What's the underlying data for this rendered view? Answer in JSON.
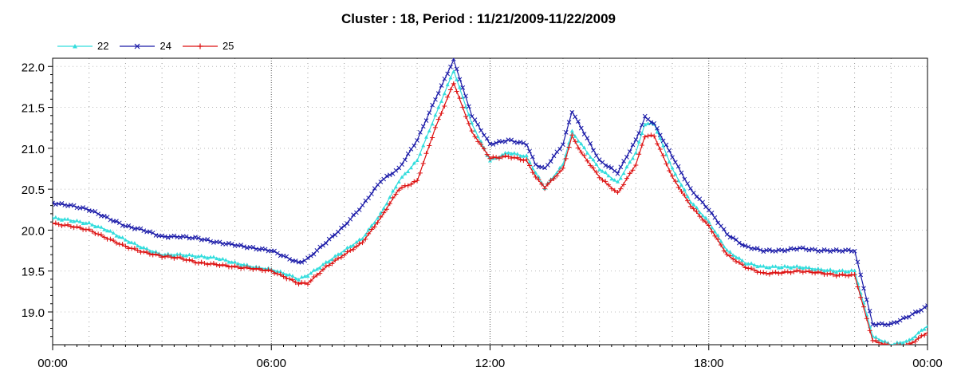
{
  "chart_data": {
    "type": "line",
    "title": "Cluster : 18, Period : 11/21/2009-11/22/2009",
    "xlabel": "",
    "ylabel": "",
    "ylim": [
      18.6,
      22.1
    ],
    "xlim_hours": [
      0,
      24
    ],
    "x_tick_labels": [
      "00:00",
      "06:00",
      "12:00",
      "18:00",
      "00:00"
    ],
    "y_tick_labels": [
      "19.0",
      "19.5",
      "20.0",
      "20.5",
      "21.0",
      "21.5",
      "22.0"
    ],
    "grid": true,
    "legend_position": "top-left",
    "x_hours": [
      0,
      0.5,
      1,
      1.5,
      2,
      2.5,
      3,
      3.5,
      4,
      4.5,
      5,
      5.5,
      6,
      6.5,
      6.75,
      7,
      7.5,
      8,
      8.5,
      9,
      9.5,
      10,
      10.5,
      11,
      11.5,
      12,
      12.5,
      13,
      13.25,
      13.5,
      14,
      14.25,
      14.5,
      15,
      15.5,
      16,
      16.25,
      16.5,
      17,
      17.5,
      18,
      18.5,
      19,
      19.5,
      20,
      20.5,
      21,
      21.5,
      22,
      22.5,
      23,
      23.5,
      24
    ],
    "series": [
      {
        "name": "22",
        "color": "#33dddd",
        "marker": "triangle",
        "values": [
          20.15,
          20.12,
          20.08,
          20.0,
          19.88,
          19.78,
          19.7,
          19.7,
          19.68,
          19.66,
          19.6,
          19.55,
          19.52,
          19.45,
          19.4,
          19.45,
          19.6,
          19.75,
          19.9,
          20.2,
          20.6,
          20.85,
          21.4,
          21.95,
          21.3,
          20.85,
          20.95,
          20.9,
          20.7,
          20.52,
          20.8,
          21.2,
          21.05,
          20.75,
          20.58,
          20.95,
          21.3,
          21.3,
          20.75,
          20.35,
          20.1,
          19.75,
          19.6,
          19.55,
          19.55,
          19.55,
          19.52,
          19.5,
          19.5,
          18.7,
          18.6,
          18.65,
          18.83
        ]
      },
      {
        "name": "24",
        "color": "#1a1aa8",
        "marker": "x",
        "values": [
          20.33,
          20.3,
          20.25,
          20.15,
          20.05,
          20.0,
          19.92,
          19.92,
          19.9,
          19.85,
          19.82,
          19.78,
          19.75,
          19.65,
          19.6,
          19.65,
          19.85,
          20.05,
          20.3,
          20.6,
          20.75,
          21.1,
          21.6,
          22.08,
          21.4,
          21.05,
          21.1,
          21.05,
          20.8,
          20.75,
          21.05,
          21.45,
          21.25,
          20.85,
          20.7,
          21.1,
          21.38,
          21.3,
          20.9,
          20.5,
          20.25,
          19.95,
          19.8,
          19.75,
          19.75,
          19.78,
          19.75,
          19.75,
          19.75,
          18.85,
          18.85,
          18.95,
          19.07
        ]
      },
      {
        "name": "25",
        "color": "#dd1111",
        "marker": "plus",
        "values": [
          20.08,
          20.05,
          20.0,
          19.9,
          19.8,
          19.73,
          19.68,
          19.66,
          19.6,
          19.58,
          19.55,
          19.53,
          19.5,
          19.4,
          19.35,
          19.35,
          19.55,
          19.7,
          19.85,
          20.15,
          20.5,
          20.6,
          21.25,
          21.8,
          21.2,
          20.88,
          20.9,
          20.85,
          20.65,
          20.52,
          20.75,
          21.15,
          20.95,
          20.65,
          20.45,
          20.8,
          21.15,
          21.15,
          20.65,
          20.3,
          20.05,
          19.7,
          19.55,
          19.47,
          19.48,
          19.5,
          19.48,
          19.45,
          19.45,
          18.65,
          18.58,
          18.6,
          18.75
        ]
      }
    ]
  }
}
